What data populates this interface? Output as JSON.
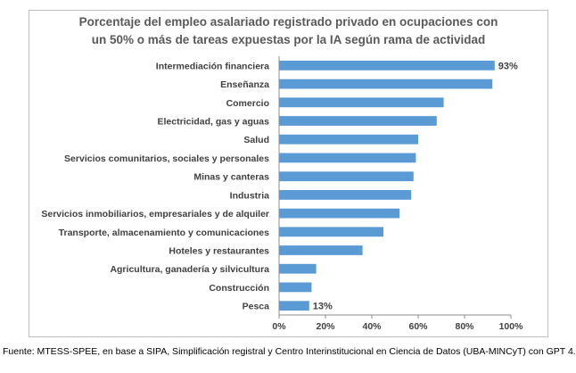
{
  "chart_data": {
    "type": "bar",
    "orientation": "horizontal",
    "title_lines": [
      "Porcentaje del empleo asalariado registrado privado en ocupaciones  con",
      "un 50% o más de tareas expuestas por la IA según rama de actividad"
    ],
    "categories": [
      "Intermediación financiera",
      "Enseñanza",
      "Comercio",
      "Electricidad, gas y aguas",
      "Salud",
      "Servicios comunitarios, sociales y personales",
      "Minas y canteras",
      "Industria",
      "Servicios inmobiliarios, empresariales y de alquiler",
      "Transporte, almacenamiento y comunicaciones",
      "Hoteles y restaurantes",
      "Agricultura, ganadería y silvicultura",
      "Construcción",
      "Pesca"
    ],
    "values": [
      93,
      92,
      71,
      68,
      60,
      59,
      58,
      57,
      52,
      45,
      36,
      16,
      14,
      13
    ],
    "data_labels": [
      {
        "index": 0,
        "text": "93%"
      },
      {
        "index": 13,
        "text": "13%"
      }
    ],
    "xlim": [
      0,
      100
    ],
    "x_ticks": [
      0,
      20,
      40,
      60,
      80,
      100
    ],
    "x_tick_labels": [
      "0%",
      "20%",
      "40%",
      "60%",
      "80%",
      "100%"
    ],
    "xlabel": "",
    "ylabel": "",
    "bar_color": "#5b9bd5",
    "grid": false,
    "legend": "none"
  },
  "footer": {
    "source": "Fuente: MTESS-SPEE, en base a SIPA, Simplificación registral y Centro Interinstitucional en Ciencia de Datos (UBA-MINCyT) con GPT 4."
  }
}
